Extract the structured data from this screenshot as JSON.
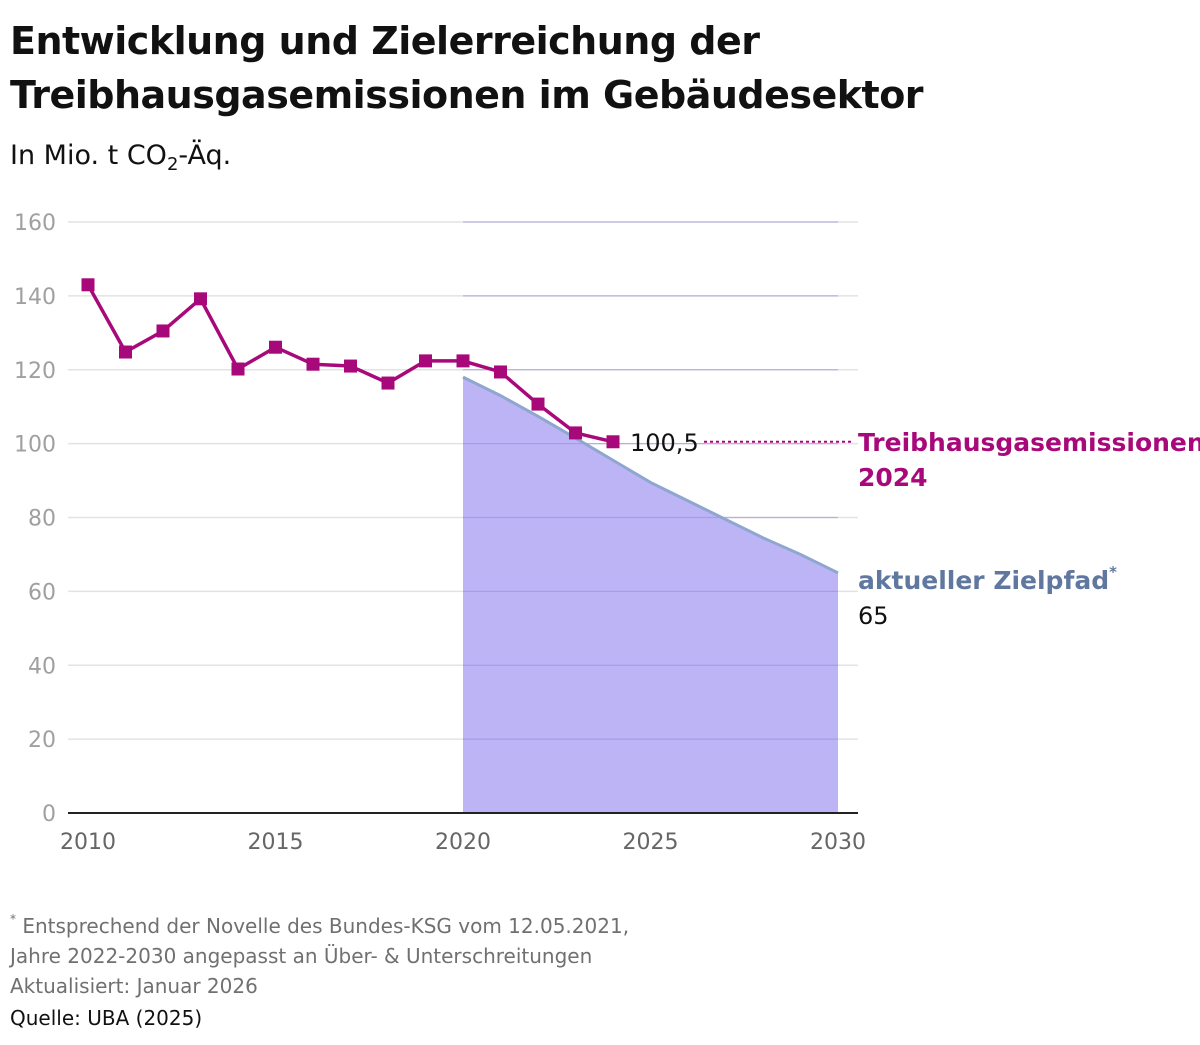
{
  "header": {
    "title": "Entwicklung und Zielerreichung der Treibhausgasemissionen im Gebäudesektor",
    "subtitle_prefix": "In Mio. t CO",
    "subtitle_sub": "2",
    "subtitle_suffix": "-Äq."
  },
  "footer": {
    "footnote_marker": "*",
    "footnote_line1": "Entsprechend der Novelle des Bundes-KSG vom 12.05.2021,",
    "footnote_line2": "Jahre 2022-2030 angepasst an Über- & Unterschreitungen",
    "updated": "Aktualisiert: Januar 2026",
    "source": "Quelle: UBA (2025)"
  },
  "colors": {
    "emissions": "#a8097a",
    "target_line": "#8fa6cf",
    "target_fill": "#b9b0f5",
    "target_label": "#60789f",
    "grid": "#e3e3e3",
    "axis": "#222222"
  },
  "chart_data": {
    "type": "line",
    "title": "Entwicklung und Zielerreichung der Treibhausgasemissionen im Gebäudesektor",
    "ylabel": "In Mio. t CO2-Äq.",
    "xlabel": "",
    "xlim": [
      2010,
      2030
    ],
    "ylim": [
      0,
      160
    ],
    "x_ticks": [
      2010,
      2015,
      2020,
      2025,
      2030
    ],
    "y_ticks": [
      0,
      20,
      40,
      60,
      80,
      100,
      120,
      140,
      160
    ],
    "grid": true,
    "series": [
      {
        "name": "Treibhausgasemissionen",
        "kind": "line-with-square-markers",
        "x": [
          2010,
          2011,
          2012,
          2013,
          2014,
          2015,
          2016,
          2017,
          2018,
          2019,
          2020,
          2021,
          2022,
          2023,
          2024
        ],
        "values": [
          143.0,
          124.8,
          130.5,
          139.2,
          120.2,
          126.1,
          121.5,
          121.0,
          116.4,
          122.4,
          122.4,
          119.4,
          110.7,
          102.9,
          100.5
        ]
      },
      {
        "name": "aktueller Zielpfad",
        "kind": "area",
        "x": [
          2020,
          2021,
          2022,
          2023,
          2024,
          2025,
          2026,
          2027,
          2028,
          2029,
          2030
        ],
        "values": [
          118.0,
          113.0,
          107.4,
          101.5,
          95.5,
          89.5,
          84.5,
          79.5,
          74.5,
          70.0,
          65.0
        ]
      }
    ],
    "annotations": {
      "emissions_value": "100,5",
      "emissions_label_line1": "Treibhausgasemissionen",
      "emissions_label_line2": "2024",
      "target_label": "aktueller Zielpfad",
      "target_label_marker": "*",
      "target_value": "65"
    }
  }
}
